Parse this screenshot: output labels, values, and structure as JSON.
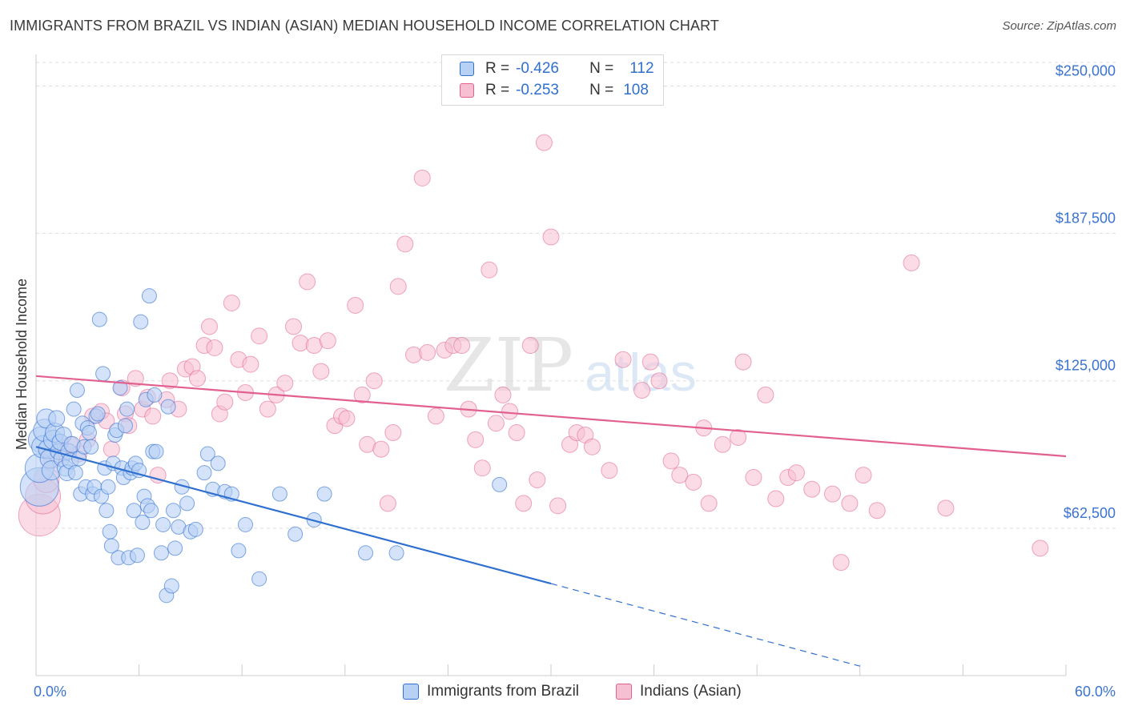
{
  "header": {
    "title": "IMMIGRANTS FROM BRAZIL VS INDIAN (ASIAN) MEDIAN HOUSEHOLD INCOME CORRELATION CHART",
    "source": "Source: ZipAtlas.com"
  },
  "watermark": {
    "zip": "ZIP",
    "atlas": "atlas"
  },
  "legend_top": {
    "rows": [
      {
        "r_label": "R =",
        "r_value": "-0.426",
        "n_label": "N =",
        "n_value": "112"
      },
      {
        "r_label": "R =",
        "r_value": "-0.253",
        "n_label": "N =",
        "n_value": "108"
      }
    ]
  },
  "legend_bottom": {
    "series_1": "Immigrants from Brazil",
    "series_2": "Indians (Asian)"
  },
  "colors": {
    "blue": "#2f6fd0",
    "blue_fill": "#b7d1f5",
    "pink": "#e2608f",
    "pink_fill": "#f7bfd2",
    "tick_label": "#3b73d0",
    "grid": "#dddddd"
  },
  "chart_data": {
    "type": "scatter",
    "title": "IMMIGRANTS FROM BRAZIL VS INDIAN (ASIAN) MEDIAN HOUSEHOLD INCOME CORRELATION CHART",
    "xlabel": "",
    "ylabel": "Median Household Income",
    "xlim": [
      0,
      60
    ],
    "ylim": [
      0,
      260000
    ],
    "x_tick_labels": [
      "0.0%",
      "60.0%"
    ],
    "y_ticks": [
      62500,
      125000,
      187500,
      250000
    ],
    "y_tick_labels": [
      "$62,500",
      "$125,000",
      "$187,500",
      "$250,000"
    ],
    "grid": "horizontal dashed",
    "legend": "top-center",
    "series": [
      {
        "name": "Immigrants from Brazil",
        "color": "#2f6fd0",
        "R": -0.426,
        "N": 112,
        "trend": {
          "x": [
            0,
            30,
            48
          ],
          "y": [
            97000,
            39000,
            4000
          ],
          "solid_until_x": 30
        },
        "points": [
          [
            0.2,
            80000,
            24
          ],
          [
            0.2,
            88000,
            18
          ],
          [
            0.3,
            100000,
            16
          ],
          [
            0.4,
            97000,
            14
          ],
          [
            0.5,
            104000,
            14
          ],
          [
            0.6,
            109000,
            12
          ],
          [
            0.7,
            96000,
            12
          ],
          [
            0.8,
            92000,
            12
          ],
          [
            0.9,
            87000,
            12
          ],
          [
            1.0,
            100000,
            12
          ],
          [
            1.1,
            103000,
            12
          ],
          [
            1.2,
            109000,
            10
          ],
          [
            1.3,
            95000,
            10
          ],
          [
            1.4,
            99000,
            10
          ],
          [
            1.5,
            92000,
            10
          ],
          [
            1.6,
            102000,
            10
          ],
          [
            1.7,
            88000,
            10
          ],
          [
            1.8,
            86000,
            10
          ],
          [
            1.9,
            95000,
            10
          ],
          [
            2.0,
            91000,
            10
          ],
          [
            2.1,
            98000,
            10
          ],
          [
            2.2,
            113000,
            9
          ],
          [
            2.3,
            86000,
            9
          ],
          [
            2.4,
            121000,
            9
          ],
          [
            2.5,
            92000,
            9
          ],
          [
            2.6,
            77000,
            9
          ],
          [
            2.7,
            107000,
            9
          ],
          [
            2.8,
            97000,
            9
          ],
          [
            2.9,
            80000,
            9
          ],
          [
            3.0,
            105000,
            9
          ],
          [
            3.1,
            103000,
            9
          ],
          [
            3.2,
            97000,
            9
          ],
          [
            3.3,
            77000,
            9
          ],
          [
            3.4,
            80000,
            9
          ],
          [
            3.5,
            110000,
            9
          ],
          [
            3.6,
            111000,
            9
          ],
          [
            3.7,
            151000,
            9
          ],
          [
            3.8,
            76000,
            9
          ],
          [
            3.9,
            128000,
            9
          ],
          [
            4.0,
            88000,
            9
          ],
          [
            4.1,
            70000,
            9
          ],
          [
            4.2,
            80000,
            9
          ],
          [
            4.3,
            61000,
            9
          ],
          [
            4.4,
            55000,
            9
          ],
          [
            4.5,
            90000,
            9
          ],
          [
            4.6,
            102000,
            9
          ],
          [
            4.7,
            104000,
            9
          ],
          [
            4.8,
            50000,
            9
          ],
          [
            4.9,
            122000,
            9
          ],
          [
            5.0,
            88000,
            9
          ],
          [
            5.1,
            84000,
            9
          ],
          [
            5.2,
            106000,
            9
          ],
          [
            5.3,
            113000,
            9
          ],
          [
            5.4,
            50000,
            9
          ],
          [
            5.5,
            86000,
            9
          ],
          [
            5.6,
            88000,
            9
          ],
          [
            5.7,
            70000,
            9
          ],
          [
            5.8,
            90000,
            9
          ],
          [
            5.9,
            51000,
            9
          ],
          [
            6.0,
            87000,
            9
          ],
          [
            6.1,
            150000,
            9
          ],
          [
            6.2,
            65000,
            9
          ],
          [
            6.3,
            76000,
            9
          ],
          [
            6.4,
            117000,
            9
          ],
          [
            6.5,
            72000,
            9
          ],
          [
            6.6,
            161000,
            9
          ],
          [
            6.7,
            70000,
            9
          ],
          [
            6.8,
            95000,
            9
          ],
          [
            6.9,
            119000,
            9
          ],
          [
            7.0,
            95000,
            9
          ],
          [
            7.3,
            52000,
            9
          ],
          [
            7.4,
            64000,
            9
          ],
          [
            7.6,
            34000,
            9
          ],
          [
            7.7,
            114000,
            9
          ],
          [
            7.9,
            38000,
            9
          ],
          [
            8.0,
            70000,
            9
          ],
          [
            8.1,
            54000,
            9
          ],
          [
            8.3,
            63000,
            9
          ],
          [
            8.5,
            80000,
            9
          ],
          [
            8.8,
            73000,
            9
          ],
          [
            9.0,
            61000,
            9
          ],
          [
            9.3,
            62000,
            9
          ],
          [
            9.8,
            86000,
            9
          ],
          [
            10.0,
            94000,
            9
          ],
          [
            10.3,
            79000,
            9
          ],
          [
            10.6,
            90000,
            9
          ],
          [
            11.0,
            78000,
            9
          ],
          [
            11.4,
            77000,
            9
          ],
          [
            11.8,
            53000,
            9
          ],
          [
            12.2,
            64000,
            9
          ],
          [
            13.0,
            41000,
            9
          ],
          [
            14.2,
            77000,
            9
          ],
          [
            15.1,
            60000,
            9
          ],
          [
            16.2,
            66000,
            9
          ],
          [
            16.8,
            77000,
            9
          ],
          [
            19.2,
            52000,
            9
          ],
          [
            21.0,
            52000,
            9
          ],
          [
            27.0,
            81000,
            9
          ]
        ]
      },
      {
        "name": "Indians (Asian)",
        "color": "#e2608f",
        "R": -0.253,
        "N": 108,
        "trend": {
          "x": [
            0,
            60
          ],
          "y": [
            127000,
            93000
          ]
        },
        "points": [
          [
            0.2,
            68000,
            26
          ],
          [
            0.4,
            76000,
            22
          ],
          [
            0.6,
            83000,
            16
          ],
          [
            1.0,
            92000,
            12
          ],
          [
            1.5,
            95000,
            10
          ],
          [
            2.0,
            98000,
            10
          ],
          [
            2.5,
            94000,
            10
          ],
          [
            3.0,
            100000,
            10
          ],
          [
            3.3,
            110000,
            10
          ],
          [
            3.8,
            112000,
            10
          ],
          [
            4.1,
            108000,
            10
          ],
          [
            4.4,
            96000,
            10
          ],
          [
            5.0,
            122000,
            10
          ],
          [
            5.2,
            111000,
            10
          ],
          [
            5.4,
            106000,
            10
          ],
          [
            5.8,
            126000,
            10
          ],
          [
            6.2,
            113000,
            10
          ],
          [
            6.5,
            118000,
            10
          ],
          [
            6.8,
            110000,
            10
          ],
          [
            7.1,
            85000,
            10
          ],
          [
            7.6,
            117000,
            10
          ],
          [
            7.8,
            125000,
            10
          ],
          [
            8.3,
            113000,
            10
          ],
          [
            8.7,
            130000,
            10
          ],
          [
            9.1,
            131000,
            10
          ],
          [
            9.4,
            126000,
            10
          ],
          [
            9.8,
            140000,
            10
          ],
          [
            10.1,
            148000,
            10
          ],
          [
            10.4,
            139000,
            10
          ],
          [
            10.7,
            111000,
            10
          ],
          [
            11.0,
            116000,
            10
          ],
          [
            11.4,
            158000,
            10
          ],
          [
            11.8,
            134000,
            10
          ],
          [
            12.2,
            120000,
            10
          ],
          [
            12.5,
            132000,
            10
          ],
          [
            13.0,
            144000,
            10
          ],
          [
            13.5,
            113000,
            10
          ],
          [
            14.0,
            119000,
            10
          ],
          [
            14.5,
            124000,
            10
          ],
          [
            15.0,
            148000,
            10
          ],
          [
            15.4,
            141000,
            10
          ],
          [
            15.8,
            167000,
            10
          ],
          [
            16.2,
            140000,
            10
          ],
          [
            16.6,
            129000,
            10
          ],
          [
            17.0,
            142000,
            10
          ],
          [
            17.4,
            106000,
            10
          ],
          [
            17.8,
            110000,
            10
          ],
          [
            18.1,
            109000,
            10
          ],
          [
            18.6,
            157000,
            10
          ],
          [
            19.0,
            119000,
            10
          ],
          [
            19.3,
            98000,
            10
          ],
          [
            19.7,
            125000,
            10
          ],
          [
            20.1,
            96000,
            10
          ],
          [
            20.5,
            73000,
            10
          ],
          [
            20.8,
            103000,
            10
          ],
          [
            21.1,
            165000,
            10
          ],
          [
            21.5,
            183000,
            10
          ],
          [
            22.0,
            136000,
            10
          ],
          [
            22.5,
            211000,
            10
          ],
          [
            22.8,
            137000,
            10
          ],
          [
            23.3,
            110000,
            10
          ],
          [
            23.8,
            138000,
            10
          ],
          [
            24.3,
            140000,
            10
          ],
          [
            24.8,
            140000,
            10
          ],
          [
            25.2,
            113000,
            10
          ],
          [
            25.6,
            100000,
            10
          ],
          [
            26.0,
            88000,
            10
          ],
          [
            26.4,
            172000,
            10
          ],
          [
            26.8,
            107000,
            10
          ],
          [
            27.2,
            119000,
            10
          ],
          [
            27.6,
            112000,
            10
          ],
          [
            28.0,
            103000,
            10
          ],
          [
            28.4,
            73000,
            10
          ],
          [
            28.8,
            140000,
            10
          ],
          [
            29.2,
            83000,
            10
          ],
          [
            29.6,
            226000,
            10
          ],
          [
            30.0,
            186000,
            10
          ],
          [
            30.4,
            72000,
            10
          ],
          [
            31.1,
            98000,
            10
          ],
          [
            31.5,
            103000,
            10
          ],
          [
            32.0,
            102000,
            10
          ],
          [
            32.4,
            97000,
            10
          ],
          [
            33.4,
            87000,
            10
          ],
          [
            34.2,
            134000,
            10
          ],
          [
            35.3,
            121000,
            10
          ],
          [
            35.8,
            133000,
            10
          ],
          [
            36.3,
            125000,
            10
          ],
          [
            37.0,
            91000,
            10
          ],
          [
            37.5,
            85000,
            10
          ],
          [
            38.3,
            82000,
            10
          ],
          [
            38.9,
            105000,
            10
          ],
          [
            39.2,
            73000,
            10
          ],
          [
            40.0,
            98000,
            10
          ],
          [
            40.9,
            101000,
            10
          ],
          [
            41.2,
            133000,
            10
          ],
          [
            41.8,
            84000,
            10
          ],
          [
            42.5,
            119000,
            10
          ],
          [
            43.1,
            75000,
            10
          ],
          [
            43.8,
            84000,
            10
          ],
          [
            44.3,
            86000,
            10
          ],
          [
            45.2,
            79000,
            10
          ],
          [
            46.4,
            77000,
            10
          ],
          [
            46.9,
            48000,
            10
          ],
          [
            47.4,
            73000,
            10
          ],
          [
            48.2,
            85000,
            10
          ],
          [
            49.0,
            70000,
            10
          ],
          [
            51.0,
            175000,
            10
          ],
          [
            53.0,
            71000,
            10
          ],
          [
            58.5,
            54000,
            10
          ]
        ]
      }
    ]
  }
}
